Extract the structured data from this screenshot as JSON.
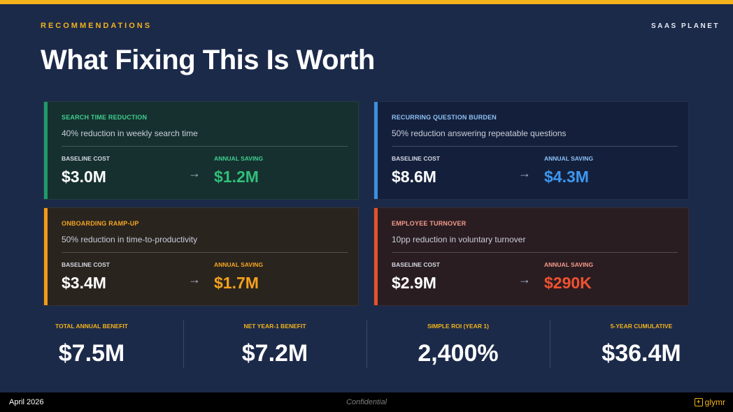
{
  "header": {
    "eyebrow": "RECOMMENDATIONS",
    "brand": "SAAS PLANET",
    "title": "What Fixing This Is Worth"
  },
  "cards": [
    {
      "title": "SEARCH TIME REDUCTION",
      "subtitle": "40% reduction in weekly search time",
      "baseline_label": "BASELINE COST",
      "baseline_value": "$3.0M",
      "saving_label": "ANNUAL SAVING",
      "saving_value": "$1.2M",
      "arrow": "→",
      "accent_color": "#1f9a6b",
      "title_color": "#3fcf8e",
      "bg_color": "#16302f"
    },
    {
      "title": "RECURRING QUESTION BURDEN",
      "subtitle": "50% reduction answering repeatable questions",
      "baseline_label": "BASELINE COST",
      "baseline_value": "$8.6M",
      "saving_label": "ANNUAL SAVING",
      "saving_value": "$4.3M",
      "arrow": "→",
      "accent_color": "#3d8fe0",
      "title_color": "#8cc0f5",
      "bg_color": "#14203b"
    },
    {
      "title": "ONBOARDING RAMP-UP",
      "subtitle": "50% reduction in time-to-productivity",
      "baseline_label": "BASELINE COST",
      "baseline_value": "$3.4M",
      "saving_label": "ANNUAL SAVING",
      "saving_value": "$1.7M",
      "arrow": "→",
      "accent_color": "#f29a1b",
      "title_color": "#f5a623",
      "bg_color": "#2a241f"
    },
    {
      "title": "EMPLOYEE TURNOVER",
      "subtitle": "10pp reduction in voluntary turnover",
      "baseline_label": "BASELINE COST",
      "baseline_value": "$2.9M",
      "saving_label": "ANNUAL SAVING",
      "saving_value": "$290K",
      "arrow": "→",
      "accent_color": "#e0532f",
      "title_color": "#f59b8a",
      "bg_color": "#2a1d22"
    }
  ],
  "stats": [
    {
      "label": "TOTAL ANNUAL BENEFIT",
      "value": "$7.5M"
    },
    {
      "label": "NET YEAR-1 BENEFIT",
      "value": "$7.2M"
    },
    {
      "label": "SIMPLE ROI (YEAR 1)",
      "value": "2,400%"
    },
    {
      "label": "5-YEAR CUMULATIVE",
      "value": "$36.4M"
    }
  ],
  "footer": {
    "date": "April 2026",
    "confidential": "Confidential",
    "logo_mark": "+",
    "logo_text": "glymr"
  },
  "colors": {
    "background": "#1c2a4a",
    "accent": "#f2b31b",
    "saving_green": "#2fbf7a",
    "saving_blue": "#3d97f0",
    "saving_orange": "#f5a21b",
    "saving_red": "#f0522e"
  }
}
